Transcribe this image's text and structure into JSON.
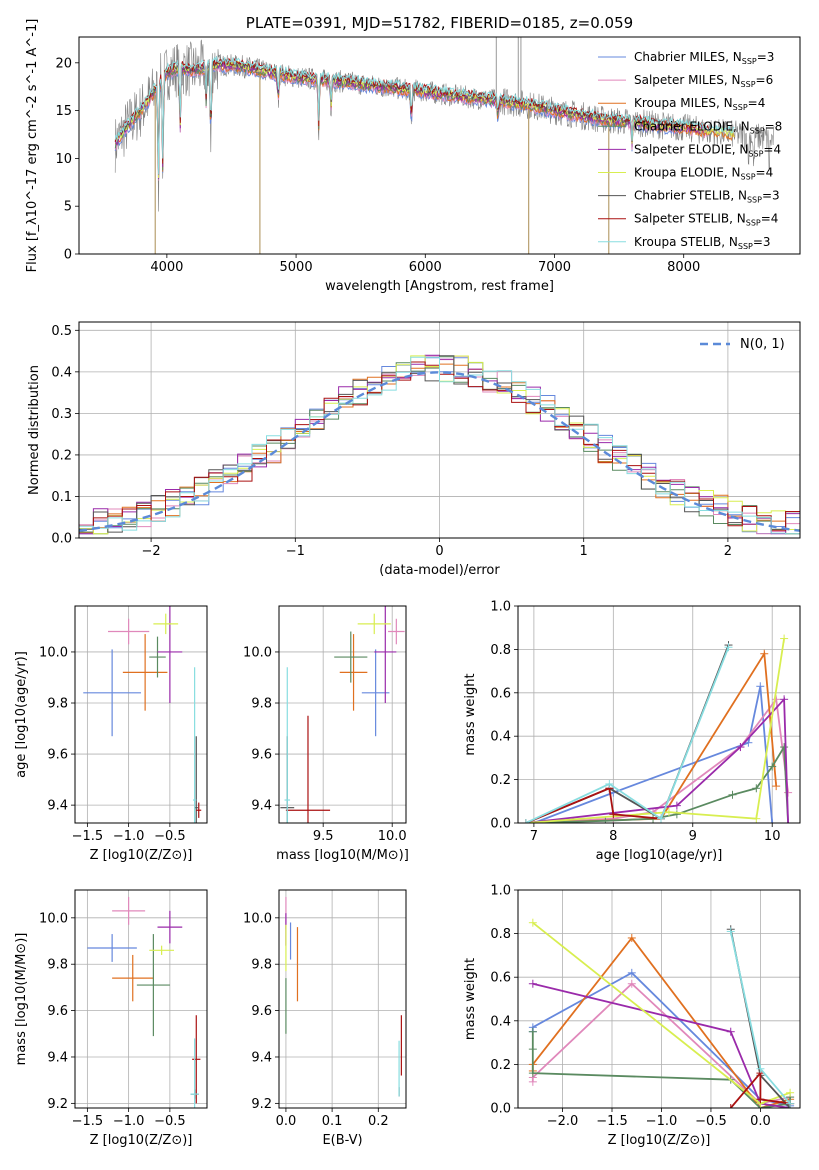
{
  "colors": {
    "chabrier_miles": "#6688dd",
    "salpeter_miles": "#e088bb",
    "kroupa_miles": "#e07020",
    "chabrier_elodie": "#5a8a60",
    "salpeter_elodie": "#9a2aaa",
    "kroupa_elodie": "#d8ee50",
    "chabrier_stelib": "#555555",
    "salpeter_stelib": "#aa1111",
    "kroupa_stelib": "#88dde0",
    "grid": "#b0b0b0",
    "spectrum": "#808080"
  },
  "legend_models": [
    {
      "key": "chabrier_miles",
      "base": "Chabrier MILES, N",
      "sub": "SSP",
      "tail": "=3"
    },
    {
      "key": "salpeter_miles",
      "base": "Salpeter MILES, N",
      "sub": "SSP",
      "tail": "=6"
    },
    {
      "key": "kroupa_miles",
      "base": "Kroupa MILES, N",
      "sub": "SSP",
      "tail": "=4"
    },
    {
      "key": "chabrier_elodie",
      "base": "Chabrier ELODIE, N",
      "sub": "SSP",
      "tail": "=8"
    },
    {
      "key": "salpeter_elodie",
      "base": "Salpeter ELODIE, N",
      "sub": "SSP",
      "tail": "=4"
    },
    {
      "key": "kroupa_elodie",
      "base": "Kroupa ELODIE, N",
      "sub": "SSP",
      "tail": "=4"
    },
    {
      "key": "chabrier_stelib",
      "base": "Chabrier STELIB, N",
      "sub": "SSP",
      "tail": "=3"
    },
    {
      "key": "salpeter_stelib",
      "base": "Salpeter STELIB, N",
      "sub": "SSP",
      "tail": "=4"
    },
    {
      "key": "kroupa_stelib",
      "base": "Kroupa STELIB, N",
      "sub": "SSP",
      "tail": "=3"
    }
  ],
  "chart_data": [
    {
      "type": "line",
      "title": "PLATE=0391, MJD=51782, FIBERID=0185, z=0.059",
      "xlabel": "wavelength [Angstrom, rest frame]",
      "ylabel": "Flux [f_λ10^-17 erg cm^-2 s^-1 A^-1]",
      "xlim": [
        3320,
        8900
      ],
      "ylim": [
        0,
        22.7
      ],
      "xticks": [
        4000,
        5000,
        6000,
        7000,
        8000
      ],
      "yticks": [
        0,
        5,
        10,
        15,
        20
      ],
      "legend": "top-right",
      "continuum": {
        "x": [
          3600,
          3700,
          3800,
          3900,
          4000,
          4100,
          4200,
          4400,
          4600,
          4800,
          5000,
          5200,
          5400,
          5600,
          5800,
          6000,
          6200,
          6400,
          6600,
          6800,
          7000,
          7200,
          7400,
          7600,
          7800,
          8000,
          8200,
          8400,
          8600,
          8700
        ],
        "y": [
          11.5,
          13.5,
          15.0,
          17.0,
          19.0,
          19.5,
          19.2,
          19.8,
          19.6,
          19.0,
          18.5,
          18.2,
          18.0,
          17.6,
          17.3,
          17.0,
          16.6,
          16.3,
          16.0,
          15.6,
          15.0,
          14.5,
          14.0,
          13.8,
          13.5,
          13.2,
          12.8,
          12.5,
          12.2,
          12.0
        ]
      },
      "absorption_dips": [
        {
          "x": 3934,
          "depth": 12.0
        },
        {
          "x": 3969,
          "depth": 10.5
        },
        {
          "x": 4102,
          "depth": 7.5
        },
        {
          "x": 4304,
          "depth": 4.0
        },
        {
          "x": 4340,
          "depth": 9.0
        },
        {
          "x": 4861,
          "depth": 3.0
        },
        {
          "x": 5175,
          "depth": 5.5
        },
        {
          "x": 5270,
          "depth": 3.0
        },
        {
          "x": 5892,
          "depth": 4.0
        },
        {
          "x": 6563,
          "depth": 2.0
        },
        {
          "x": 7600,
          "depth": 2.5
        },
        {
          "x": 8500,
          "depth": 3.0
        },
        {
          "x": 8542,
          "depth": 3.5
        },
        {
          "x": 8662,
          "depth": 3.0
        }
      ],
      "spikes": [
        {
          "x": 4720,
          "y": 0
        },
        {
          "x": 3910,
          "y": 0
        },
        {
          "x": 6800,
          "y": 0
        },
        {
          "x": 7420,
          "y": 0
        },
        {
          "x": 6550,
          "y": 22.7
        },
        {
          "x": 6720,
          "y": 22.7
        },
        {
          "x": 6740,
          "y": 22.7
        }
      ]
    },
    {
      "type": "area",
      "xlabel": "(data-model)/error",
      "ylabel": "Normed distribution",
      "xlim": [
        -2.5,
        2.5
      ],
      "ylim": [
        0,
        0.52
      ],
      "xticks": [
        -2,
        -1,
        0,
        1,
        2
      ],
      "yticks": [
        0.0,
        0.1,
        0.2,
        0.3,
        0.4,
        0.5
      ],
      "xtick_labels": [
        "−2",
        "−1",
        "0",
        "1",
        "2"
      ],
      "legend": "top-right",
      "legend_label": "N(0, 1)",
      "bin_width": 0.1,
      "bin_start": -2.5,
      "base_hist": [
        0.03,
        0.035,
        0.04,
        0.045,
        0.05,
        0.055,
        0.06,
        0.065,
        0.07,
        0.08,
        0.09,
        0.1,
        0.11,
        0.13,
        0.15,
        0.17,
        0.19,
        0.2,
        0.21,
        0.23,
        0.24,
        0.25,
        0.27,
        0.29,
        0.31,
        0.33,
        0.35,
        0.37,
        0.38,
        0.39,
        0.4,
        0.4,
        0.41,
        0.42,
        0.42,
        0.41,
        0.4,
        0.38,
        0.36,
        0.34,
        0.32,
        0.3,
        0.29,
        0.27,
        0.25,
        0.23,
        0.21,
        0.19,
        0.17,
        0.16,
        0.14,
        0.12,
        0.11,
        0.1,
        0.09,
        0.08,
        0.07,
        0.06,
        0.055,
        0.05,
        0.045,
        0.04,
        0.035,
        0.03,
        0.03,
        0.03,
        0.03,
        0.03,
        0.03,
        0.025,
        0.025,
        0.025,
        0.025,
        0.025,
        0.025,
        0.025,
        0.025,
        0.025,
        0.025,
        0.025,
        0.025,
        0.025,
        0.025,
        0.025,
        0.025,
        0.025,
        0.025,
        0.025,
        0.025,
        0.025,
        0.025,
        0.025,
        0.025,
        0.025,
        0.025,
        0.025,
        0.025,
        0.025,
        0.025,
        0.025
      ]
    },
    {
      "type": "scatter",
      "xlabel": "Z [log10(Z/Z⊙)]",
      "ylabel": "age  [log10(age/yr)]",
      "xlim": [
        -1.65,
        -0.05
      ],
      "ylim": [
        9.33,
        10.18
      ],
      "xticks": [
        -1.5,
        -1.0,
        -0.5
      ],
      "yticks": [
        9.4,
        9.6,
        9.8,
        10.0
      ],
      "xtick_labels": [
        "−1.5",
        "−1.0",
        "−0.5"
      ],
      "points": [
        {
          "key": "chabrier_miles",
          "x": -1.2,
          "xerr": 0.35,
          "y": 9.84,
          "yerr": 0.17
        },
        {
          "key": "salpeter_miles",
          "x": -1.0,
          "xerr": 0.25,
          "y": 10.08,
          "yerr": 0.05
        },
        {
          "key": "kroupa_miles",
          "x": -0.8,
          "xerr": 0.27,
          "y": 9.92,
          "yerr": 0.15
        },
        {
          "key": "chabrier_elodie",
          "x": -0.65,
          "xerr": 0.1,
          "y": 9.98,
          "yerr": 0.08
        },
        {
          "key": "salpeter_elodie",
          "x": -0.5,
          "xerr": 0.15,
          "y": 10.0,
          "yerr": 0.2
        },
        {
          "key": "kroupa_elodie",
          "x": -0.55,
          "xerr": 0.15,
          "y": 10.11,
          "yerr": 0.04
        },
        {
          "key": "chabrier_stelib",
          "x": -0.18,
          "xerr": 0.02,
          "y": 9.39,
          "yerr": 0.28
        },
        {
          "key": "salpeter_stelib",
          "x": -0.15,
          "xerr": 0.03,
          "y": 9.38,
          "yerr": 0.03
        },
        {
          "key": "kroupa_stelib",
          "x": -0.2,
          "xerr": 0.02,
          "y": 9.42,
          "yerr": 0.52
        }
      ]
    },
    {
      "type": "scatter",
      "xlabel": "mass [log10(M/M⊙)]",
      "ylabel": "",
      "xlim": [
        9.18,
        10.1
      ],
      "ylim": [
        9.33,
        10.18
      ],
      "xticks": [
        9.5,
        10.0
      ],
      "yticks": [
        9.4,
        9.6,
        9.8,
        10.0
      ],
      "points": [
        {
          "key": "chabrier_miles",
          "x": 9.88,
          "xerr": 0.1,
          "y": 9.84,
          "yerr": 0.17
        },
        {
          "key": "salpeter_miles",
          "x": 10.03,
          "xerr": 0.06,
          "y": 10.08,
          "yerr": 0.05
        },
        {
          "key": "kroupa_miles",
          "x": 9.72,
          "xerr": 0.1,
          "y": 9.92,
          "yerr": 0.15
        },
        {
          "key": "chabrier_elodie",
          "x": 9.7,
          "xerr": 0.12,
          "y": 9.98,
          "yerr": 0.1
        },
        {
          "key": "salpeter_elodie",
          "x": 9.95,
          "xerr": 0.08,
          "y": 10.0,
          "yerr": 0.2
        },
        {
          "key": "kroupa_elodie",
          "x": 9.87,
          "xerr": 0.12,
          "y": 10.11,
          "yerr": 0.04
        },
        {
          "key": "chabrier_stelib",
          "x": 9.24,
          "xerr": 0.05,
          "y": 9.39,
          "yerr": 0.28
        },
        {
          "key": "salpeter_stelib",
          "x": 9.39,
          "xerr": 0.16,
          "y": 9.38,
          "yerr": 0.37
        },
        {
          "key": "kroupa_stelib",
          "x": 9.24,
          "xerr": 0.02,
          "y": 9.42,
          "yerr": 0.52
        }
      ]
    },
    {
      "type": "line",
      "xlabel": "age  [log10(age/yr)]",
      "ylabel": "mass weight",
      "xlim": [
        6.8,
        10.35
      ],
      "ylim": [
        0,
        1.0
      ],
      "xticks": [
        7,
        8,
        9,
        10
      ],
      "yticks": [
        0.0,
        0.2,
        0.4,
        0.6,
        0.8,
        1.0
      ],
      "series": [
        {
          "key": "chabrier_miles",
          "x": [
            7.0,
            8.0,
            9.7,
            9.85,
            10.0
          ],
          "y": [
            0.0,
            0.14,
            0.37,
            0.63,
            0.0
          ]
        },
        {
          "key": "salpeter_miles",
          "x": [
            7.0,
            8.0,
            8.5,
            9.6,
            10.05,
            10.2
          ],
          "y": [
            0.0,
            0.02,
            0.05,
            0.35,
            0.57,
            0.14
          ]
        },
        {
          "key": "kroupa_miles",
          "x": [
            6.9,
            8.6,
            9.9,
            10.05
          ],
          "y": [
            0.0,
            0.02,
            0.78,
            0.17
          ]
        },
        {
          "key": "chabrier_elodie",
          "x": [
            6.9,
            7.9,
            8.5,
            8.8,
            9.5,
            9.8,
            10.0,
            10.15,
            10.2
          ],
          "y": [
            0.0,
            0.01,
            0.02,
            0.04,
            0.13,
            0.16,
            0.26,
            0.35,
            0.0
          ]
        },
        {
          "key": "salpeter_elodie",
          "x": [
            6.9,
            8.8,
            9.6,
            10.15,
            10.2
          ],
          "y": [
            0.0,
            0.08,
            0.35,
            0.57,
            0.0
          ]
        },
        {
          "key": "kroupa_elodie",
          "x": [
            6.9,
            8.7,
            9.8,
            10.15
          ],
          "y": [
            0.0,
            0.05,
            0.02,
            0.85
          ]
        },
        {
          "key": "chabrier_stelib",
          "x": [
            6.9,
            7.95,
            8.6,
            9.45
          ],
          "y": [
            0.0,
            0.16,
            0.02,
            0.82
          ]
        },
        {
          "key": "salpeter_stelib",
          "x": [
            6.9,
            7.95,
            8.0,
            8.6
          ],
          "y": [
            0.0,
            0.16,
            0.04,
            0.02
          ]
        },
        {
          "key": "kroupa_stelib",
          "x": [
            6.9,
            7.95,
            8.6,
            9.45
          ],
          "y": [
            0.0,
            0.18,
            0.02,
            0.81
          ]
        }
      ]
    },
    {
      "type": "scatter",
      "xlabel": "Z [log10(Z/Z⊙)]",
      "ylabel": "mass [log10(M/M⊙)]",
      "xlim": [
        -1.65,
        -0.05
      ],
      "ylim": [
        9.18,
        10.12
      ],
      "xticks": [
        -1.5,
        -1.0,
        -0.5
      ],
      "yticks": [
        9.2,
        9.4,
        9.6,
        9.8,
        10.0
      ],
      "xtick_labels": [
        "−1.5",
        "−1.0",
        "−0.5"
      ],
      "points": [
        {
          "key": "chabrier_miles",
          "x": -1.2,
          "xerr": 0.3,
          "y": 9.87,
          "yerr": 0.06
        },
        {
          "key": "salpeter_miles",
          "x": -1.0,
          "xerr": 0.2,
          "y": 10.03,
          "yerr": 0.06
        },
        {
          "key": "kroupa_miles",
          "x": -0.95,
          "xerr": 0.25,
          "y": 9.74,
          "yerr": 0.1
        },
        {
          "key": "chabrier_elodie",
          "x": -0.7,
          "xerr": 0.2,
          "y": 9.71,
          "yerr": 0.22
        },
        {
          "key": "salpeter_elodie",
          "x": -0.5,
          "xerr": 0.15,
          "y": 9.96,
          "yerr": 0.07
        },
        {
          "key": "kroupa_elodie",
          "x": -0.6,
          "xerr": 0.15,
          "y": 9.86,
          "yerr": 0.02
        },
        {
          "key": "chabrier_stelib",
          "x": -0.2,
          "xerr": 0.05,
          "y": 9.24,
          "yerr": 0.02
        },
        {
          "key": "salpeter_stelib",
          "x": -0.18,
          "xerr": 0.05,
          "y": 9.39,
          "yerr": 0.19
        },
        {
          "key": "kroupa_stelib",
          "x": -0.2,
          "xerr": 0.05,
          "y": 9.24,
          "yerr": 0.24
        }
      ]
    },
    {
      "type": "scatter",
      "xlabel": "E(B-V)",
      "ylabel": "",
      "xlim": [
        -0.015,
        0.26
      ],
      "ylim": [
        9.18,
        10.12
      ],
      "xticks": [
        0.0,
        0.1,
        0.2
      ],
      "yticks": [
        9.2,
        9.4,
        9.6,
        9.8,
        10.0
      ],
      "points": [
        {
          "key": "chabrier_miles",
          "x": 0.01,
          "xerr": 0.0,
          "y": 9.9,
          "yerr": 0.08
        },
        {
          "key": "salpeter_miles",
          "x": 0.0,
          "xerr": 0.0,
          "y": 10.02,
          "yerr": 0.07
        },
        {
          "key": "kroupa_miles",
          "x": 0.025,
          "xerr": 0.0,
          "y": 9.8,
          "yerr": 0.16
        },
        {
          "key": "chabrier_elodie",
          "x": 0.0,
          "xerr": 0.0,
          "y": 9.62,
          "yerr": 0.12
        },
        {
          "key": "salpeter_elodie",
          "x": 0.0,
          "xerr": 0.0,
          "y": 9.95,
          "yerr": 0.07
        },
        {
          "key": "kroupa_elodie",
          "x": 0.0,
          "xerr": 0.0,
          "y": 9.87,
          "yerr": 0.1
        },
        {
          "key": "chabrier_stelib",
          "x": 0.245,
          "xerr": 0.0,
          "y": 9.25,
          "yerr": 0.02
        },
        {
          "key": "salpeter_stelib",
          "x": 0.25,
          "xerr": 0.0,
          "y": 9.45,
          "yerr": 0.13
        },
        {
          "key": "kroupa_stelib",
          "x": 0.245,
          "xerr": 0.0,
          "y": 9.35,
          "yerr": 0.12
        }
      ]
    },
    {
      "type": "line",
      "xlabel": "Z [log10(Z/Z⊙)]",
      "ylabel": "mass weight",
      "xlim": [
        -2.45,
        0.4
      ],
      "ylim": [
        0,
        1.0
      ],
      "xticks": [
        -2.0,
        -1.5,
        -1.0,
        -0.5,
        0.0
      ],
      "yticks": [
        0.0,
        0.2,
        0.4,
        0.6,
        0.8,
        1.0
      ],
      "xtick_labels": [
        "−2.0",
        "−1.5",
        "−1.0",
        "−0.5",
        "0.0"
      ],
      "series": [
        {
          "key": "chabrier_miles",
          "x": [
            -2.3,
            -2.3,
            -1.3,
            0.0,
            0.3
          ],
          "y": [
            0.35,
            0.37,
            0.62,
            0.04,
            0.01
          ]
        },
        {
          "key": "salpeter_miles",
          "x": [
            -2.3,
            -2.3,
            -1.3,
            0.0,
            0.3
          ],
          "y": [
            0.12,
            0.14,
            0.57,
            0.02,
            0.05
          ]
        },
        {
          "key": "kroupa_miles",
          "x": [
            -2.3,
            -2.3,
            -1.3,
            0.0,
            0.3
          ],
          "y": [
            0.17,
            0.2,
            0.78,
            0.0,
            0.04
          ]
        },
        {
          "key": "chabrier_elodie",
          "x": [
            -2.3,
            -2.3,
            -2.3,
            -0.3,
            0.0,
            0.3,
            0.3
          ],
          "y": [
            0.35,
            0.27,
            0.16,
            0.13,
            0.0,
            0.02,
            0.05
          ]
        },
        {
          "key": "salpeter_elodie",
          "x": [
            -2.3,
            -0.3,
            0.0,
            0.3
          ],
          "y": [
            0.57,
            0.35,
            0.02,
            0.0
          ]
        },
        {
          "key": "kroupa_elodie",
          "x": [
            -2.3,
            0.0,
            0.3
          ],
          "y": [
            0.85,
            0.02,
            0.07
          ]
        },
        {
          "key": "chabrier_stelib",
          "x": [
            -0.3,
            0.0,
            0.3
          ],
          "y": [
            0.82,
            0.15,
            0.0
          ]
        },
        {
          "key": "salpeter_stelib",
          "x": [
            -0.3,
            0.0,
            0.0,
            0.3
          ],
          "y": [
            0.0,
            0.16,
            0.04,
            0.02
          ]
        },
        {
          "key": "kroupa_stelib",
          "x": [
            -0.3,
            0.0,
            0.3
          ],
          "y": [
            0.81,
            0.18,
            0.02
          ]
        }
      ]
    }
  ]
}
